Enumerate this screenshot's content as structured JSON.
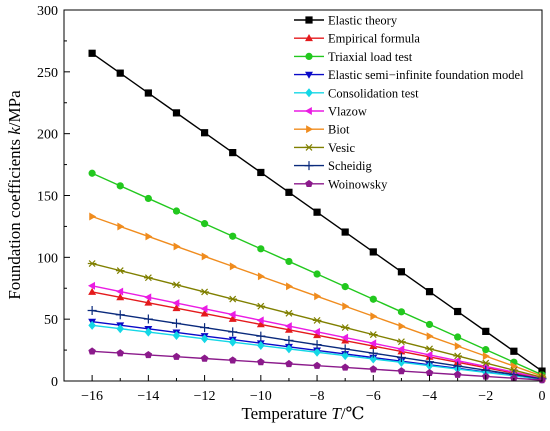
{
  "chart_data": {
    "type": "line",
    "xlabel": {
      "prefix": "Temperature ",
      "var": "T",
      "suffix": "/℃"
    },
    "ylabel": {
      "prefix": "Foundation coefficients ",
      "var": "k",
      "suffix": "/MPa"
    },
    "xlim": [
      -17,
      0
    ],
    "ylim": [
      0,
      300
    ],
    "xticks": [
      -16,
      -14,
      -12,
      -10,
      -8,
      -6,
      -4,
      -2,
      0
    ],
    "yticks": [
      0,
      50,
      100,
      150,
      200,
      250,
      300
    ],
    "x": [
      -16,
      -15,
      -14,
      -13,
      -12,
      -11,
      -10,
      -9,
      -8,
      -7,
      -6,
      -5,
      -4,
      -3,
      -2,
      -1,
      0
    ],
    "legend_position": "top-right",
    "series": [
      {
        "name": "Elastic theory",
        "color": "#000000",
        "marker": "square",
        "start": 265,
        "end": 8
      },
      {
        "name": "Empirical formula",
        "color": "#e41a1c",
        "marker": "triangle-up",
        "start": 72,
        "end": 2
      },
      {
        "name": "Triaxial load test",
        "color": "#22c81e",
        "marker": "circle",
        "start": 168,
        "end": 5
      },
      {
        "name": "Elastic semi−infinite foundation model",
        "color": "#0a0ac8",
        "marker": "triangle-down",
        "start": 48,
        "end": 1.5
      },
      {
        "name": "Consolidation test",
        "color": "#14d7e6",
        "marker": "diamond",
        "start": 45,
        "end": 1.5
      },
      {
        "name": "Vlazow",
        "color": "#ea1ce3",
        "marker": "triangle-left",
        "start": 77,
        "end": 2.5
      },
      {
        "name": "Biot",
        "color": "#f08c1e",
        "marker": "triangle-right",
        "start": 133,
        "end": 4
      },
      {
        "name": "Vesic",
        "color": "#808000",
        "marker": "asterisk",
        "start": 95,
        "end": 3
      },
      {
        "name": "Scheidig",
        "color": "#0a2a7c",
        "marker": "plus",
        "start": 57,
        "end": 1.8
      },
      {
        "name": "Woinowsky",
        "color": "#8b1a8b",
        "marker": "pentagon",
        "start": 24,
        "end": 0.8
      }
    ]
  }
}
